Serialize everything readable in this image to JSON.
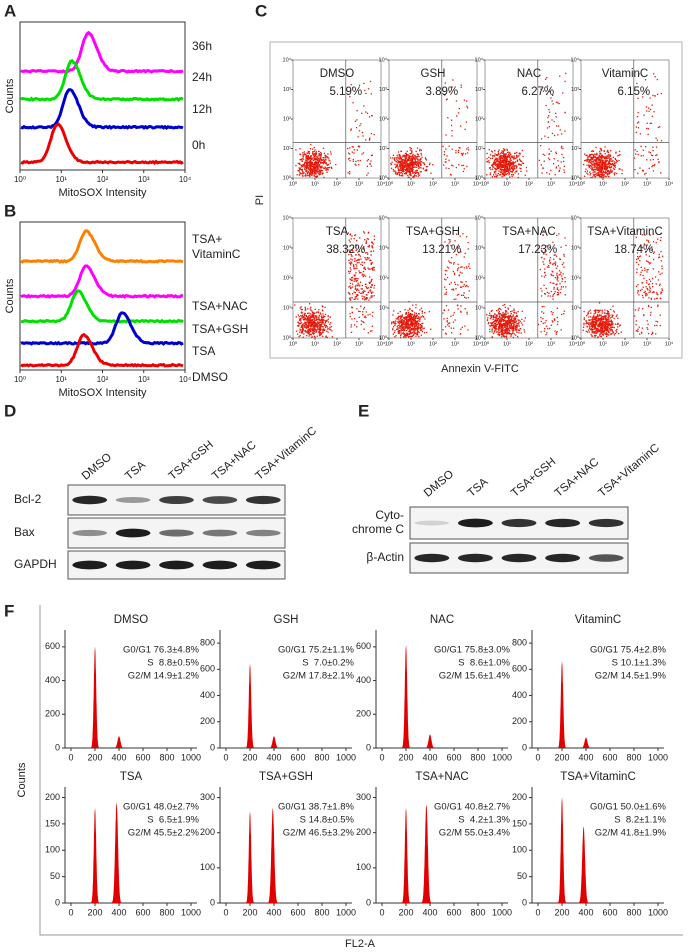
{
  "panel_a": {
    "letter": "A",
    "y_label": "Counts",
    "x_label": "MitoSOX Intensity",
    "xlim": [
      1,
      10000
    ],
    "xticks": [
      {
        "value": 1,
        "label": "10⁰"
      },
      {
        "value": 10,
        "label": "10¹"
      },
      {
        "value": 100,
        "label": "10²"
      },
      {
        "value": 1000,
        "label": "10³"
      },
      {
        "value": 10000,
        "label": "10⁴"
      }
    ],
    "curves": [
      {
        "label": [
          "36h"
        ],
        "color": "#ff00ff",
        "peak_x": 45
      },
      {
        "label": [
          "24h"
        ],
        "color": "#00e000",
        "peak_x": 18
      },
      {
        "label": [
          "12h"
        ],
        "color": "#0000cc",
        "peak_x": 16
      },
      {
        "label": [
          "0h"
        ],
        "color": "#ee0000",
        "peak_x": 8
      }
    ]
  },
  "panel_b": {
    "letter": "B",
    "y_label": "Counts",
    "x_label": "MitoSOX Intensity",
    "xlim": [
      1,
      10000
    ],
    "xticks": [
      {
        "value": 1,
        "label": "10⁰"
      },
      {
        "value": 10,
        "label": "10¹"
      },
      {
        "value": 100,
        "label": "10²"
      },
      {
        "value": 1000,
        "label": "10³"
      },
      {
        "value": 10000,
        "label": "10⁴"
      }
    ],
    "curves": [
      {
        "label": [
          "TSA+",
          "VitaminC"
        ],
        "color": "#ff8000",
        "peak_x": 40
      },
      {
        "label": [
          "TSA+NAC"
        ],
        "color": "#ff00ff",
        "peak_x": 40
      },
      {
        "label": [
          "TSA+GSH"
        ],
        "color": "#00e000",
        "peak_x": 25
      },
      {
        "label": [
          "TSA"
        ],
        "color": "#0000cc",
        "peak_x": 300
      },
      {
        "label": [
          "DMSO"
        ],
        "color": "#ee0000",
        "peak_x": 35
      }
    ]
  },
  "panel_c": {
    "letter": "C",
    "y_label": "PI",
    "x_label": "Annexin V-FITC",
    "lim": [
      1,
      10000
    ],
    "ticks": [
      {
        "value": 1,
        "label": "10⁰"
      },
      {
        "value": 10,
        "label": "10¹"
      },
      {
        "value": 100,
        "label": "10²"
      },
      {
        "value": 1000,
        "label": "10³"
      },
      {
        "value": 10000,
        "label": "10⁴"
      }
    ],
    "plots": [
      {
        "title": "DMSO",
        "percent": "5.19%"
      },
      {
        "title": "GSH",
        "percent": "3.89%"
      },
      {
        "title": "NAC",
        "percent": "6.27%"
      },
      {
        "title": "VitaminC",
        "percent": "6.15%"
      },
      {
        "title": "TSA",
        "percent": "38.32%"
      },
      {
        "title": "TSA+GSH",
        "percent": "13.21%"
      },
      {
        "title": "TSA+NAC",
        "percent": "17.23%"
      },
      {
        "title": "TSA+VitaminC",
        "percent": "18.74%"
      }
    ]
  },
  "panel_d": {
    "letter": "D",
    "lanes": [
      "DMSO",
      "TSA",
      "TSA+GSH",
      "TSA+NAC",
      "TSA+VitaminC"
    ],
    "rows": [
      "Bcl-2",
      "Bax",
      "GAPDH"
    ]
  },
  "panel_e": {
    "letter": "E",
    "lanes": [
      "DMSO",
      "TSA",
      "TSA+GSH",
      "TSA+NAC",
      "TSA+VitaminC"
    ],
    "rows": [
      [
        "Cyto-",
        "chrome C"
      ],
      [
        "β-Actin"
      ]
    ]
  },
  "panel_f": {
    "letter": "F",
    "y_label": "Counts",
    "x_label": "FL2-A",
    "plots": [
      {
        "title": "DMSO",
        "stats": [
          "G0/G1 76.3±4.8%",
          "S  8.8±0.5%",
          "G2/M 14.9±1.2%"
        ],
        "xlim": [
          -50,
          1050
        ],
        "xticks": [
          0,
          200,
          400,
          600,
          800,
          1000
        ],
        "ylim": [
          0,
          700
        ],
        "yticks": [
          0,
          200,
          400,
          600
        ],
        "peak_x": [
          200,
          400
        ],
        "peak_counts": [
          600,
          70
        ]
      },
      {
        "title": "GSH",
        "stats": [
          "G0/G1 75.2±1.1%",
          "S  7.0±0.2%",
          "G2/M 17.8±2.1%"
        ],
        "xlim": [
          -50,
          1050
        ],
        "xticks": [
          0,
          200,
          400,
          600,
          800,
          1000
        ],
        "ylim": [
          0,
          900
        ],
        "yticks": [
          0,
          200,
          400,
          600,
          800
        ],
        "peak_x": [
          200,
          400
        ],
        "peak_counts": [
          640,
          90
        ]
      },
      {
        "title": "NAC",
        "stats": [
          "G0/G1 75.8±3.0%",
          "S  8.6±1.0%",
          "G2/M 15.6±1.4%"
        ],
        "xlim": [
          -50,
          1050
        ],
        "xticks": [
          0,
          200,
          400,
          600,
          800,
          1000
        ],
        "ylim": [
          0,
          700
        ],
        "yticks": [
          0,
          200,
          400,
          600
        ],
        "peak_x": [
          200,
          400
        ],
        "peak_counts": [
          610,
          80
        ]
      },
      {
        "title": "VitaminC",
        "stats": [
          "G0/G1 75.4±2.8%",
          "S 10.1±1.3%",
          "G2/M 14.5±1.9%"
        ],
        "xlim": [
          -50,
          1050
        ],
        "xticks": [
          0,
          200,
          400,
          600,
          800,
          1000
        ],
        "ylim": [
          0,
          900
        ],
        "yticks": [
          0,
          200,
          400,
          600,
          800
        ],
        "peak_x": [
          200,
          400
        ],
        "peak_counts": [
          660,
          80
        ]
      },
      {
        "title": "TSA",
        "stats": [
          "G0/G1 48.0±2.7%",
          "S  6.5±1.9%",
          "G2/M 45.5±2.2%"
        ],
        "xlim": [
          -50,
          1050
        ],
        "xticks": [
          0,
          200,
          400,
          600,
          800,
          1000
        ],
        "ylim": [
          0,
          220
        ],
        "yticks": [
          0,
          50,
          100,
          150,
          200
        ],
        "peak_x": [
          200,
          380
        ],
        "peak_counts": [
          180,
          190
        ]
      },
      {
        "title": "TSA+GSH",
        "stats": [
          "G0/G1 38.7±1.8%",
          "S 14.8±0.5%",
          "G2/M 46.5±3.2%"
        ],
        "xlim": [
          -50,
          1050
        ],
        "xticks": [
          0,
          200,
          400,
          600,
          800,
          1000
        ],
        "ylim": [
          0,
          330
        ],
        "yticks": [
          0,
          100,
          200,
          300
        ],
        "peak_x": [
          200,
          390
        ],
        "peak_counts": [
          260,
          270
        ]
      },
      {
        "title": "TSA+NAC",
        "stats": [
          "G0/G1 40.8±2.7%",
          "S  4.2±1.3%",
          "G2/M 55.0±3.4%"
        ],
        "xlim": [
          -50,
          1050
        ],
        "xticks": [
          0,
          200,
          400,
          600,
          800,
          1000
        ],
        "ylim": [
          0,
          330
        ],
        "yticks": [
          0,
          100,
          200,
          300
        ],
        "peak_x": [
          200,
          370
        ],
        "peak_counts": [
          270,
          280
        ]
      },
      {
        "title": "TSA+VitaminC",
        "stats": [
          "G0/G1 50.0±1.6%",
          "S  8.2±1.1%",
          "G2/M 41.8±1.9%"
        ],
        "xlim": [
          -50,
          1050
        ],
        "xticks": [
          0,
          200,
          400,
          600,
          800,
          1000
        ],
        "ylim": [
          0,
          220
        ],
        "yticks": [
          0,
          50,
          100,
          150,
          200
        ],
        "peak_x": [
          200,
          380
        ],
        "peak_counts": [
          200,
          145
        ]
      }
    ]
  }
}
